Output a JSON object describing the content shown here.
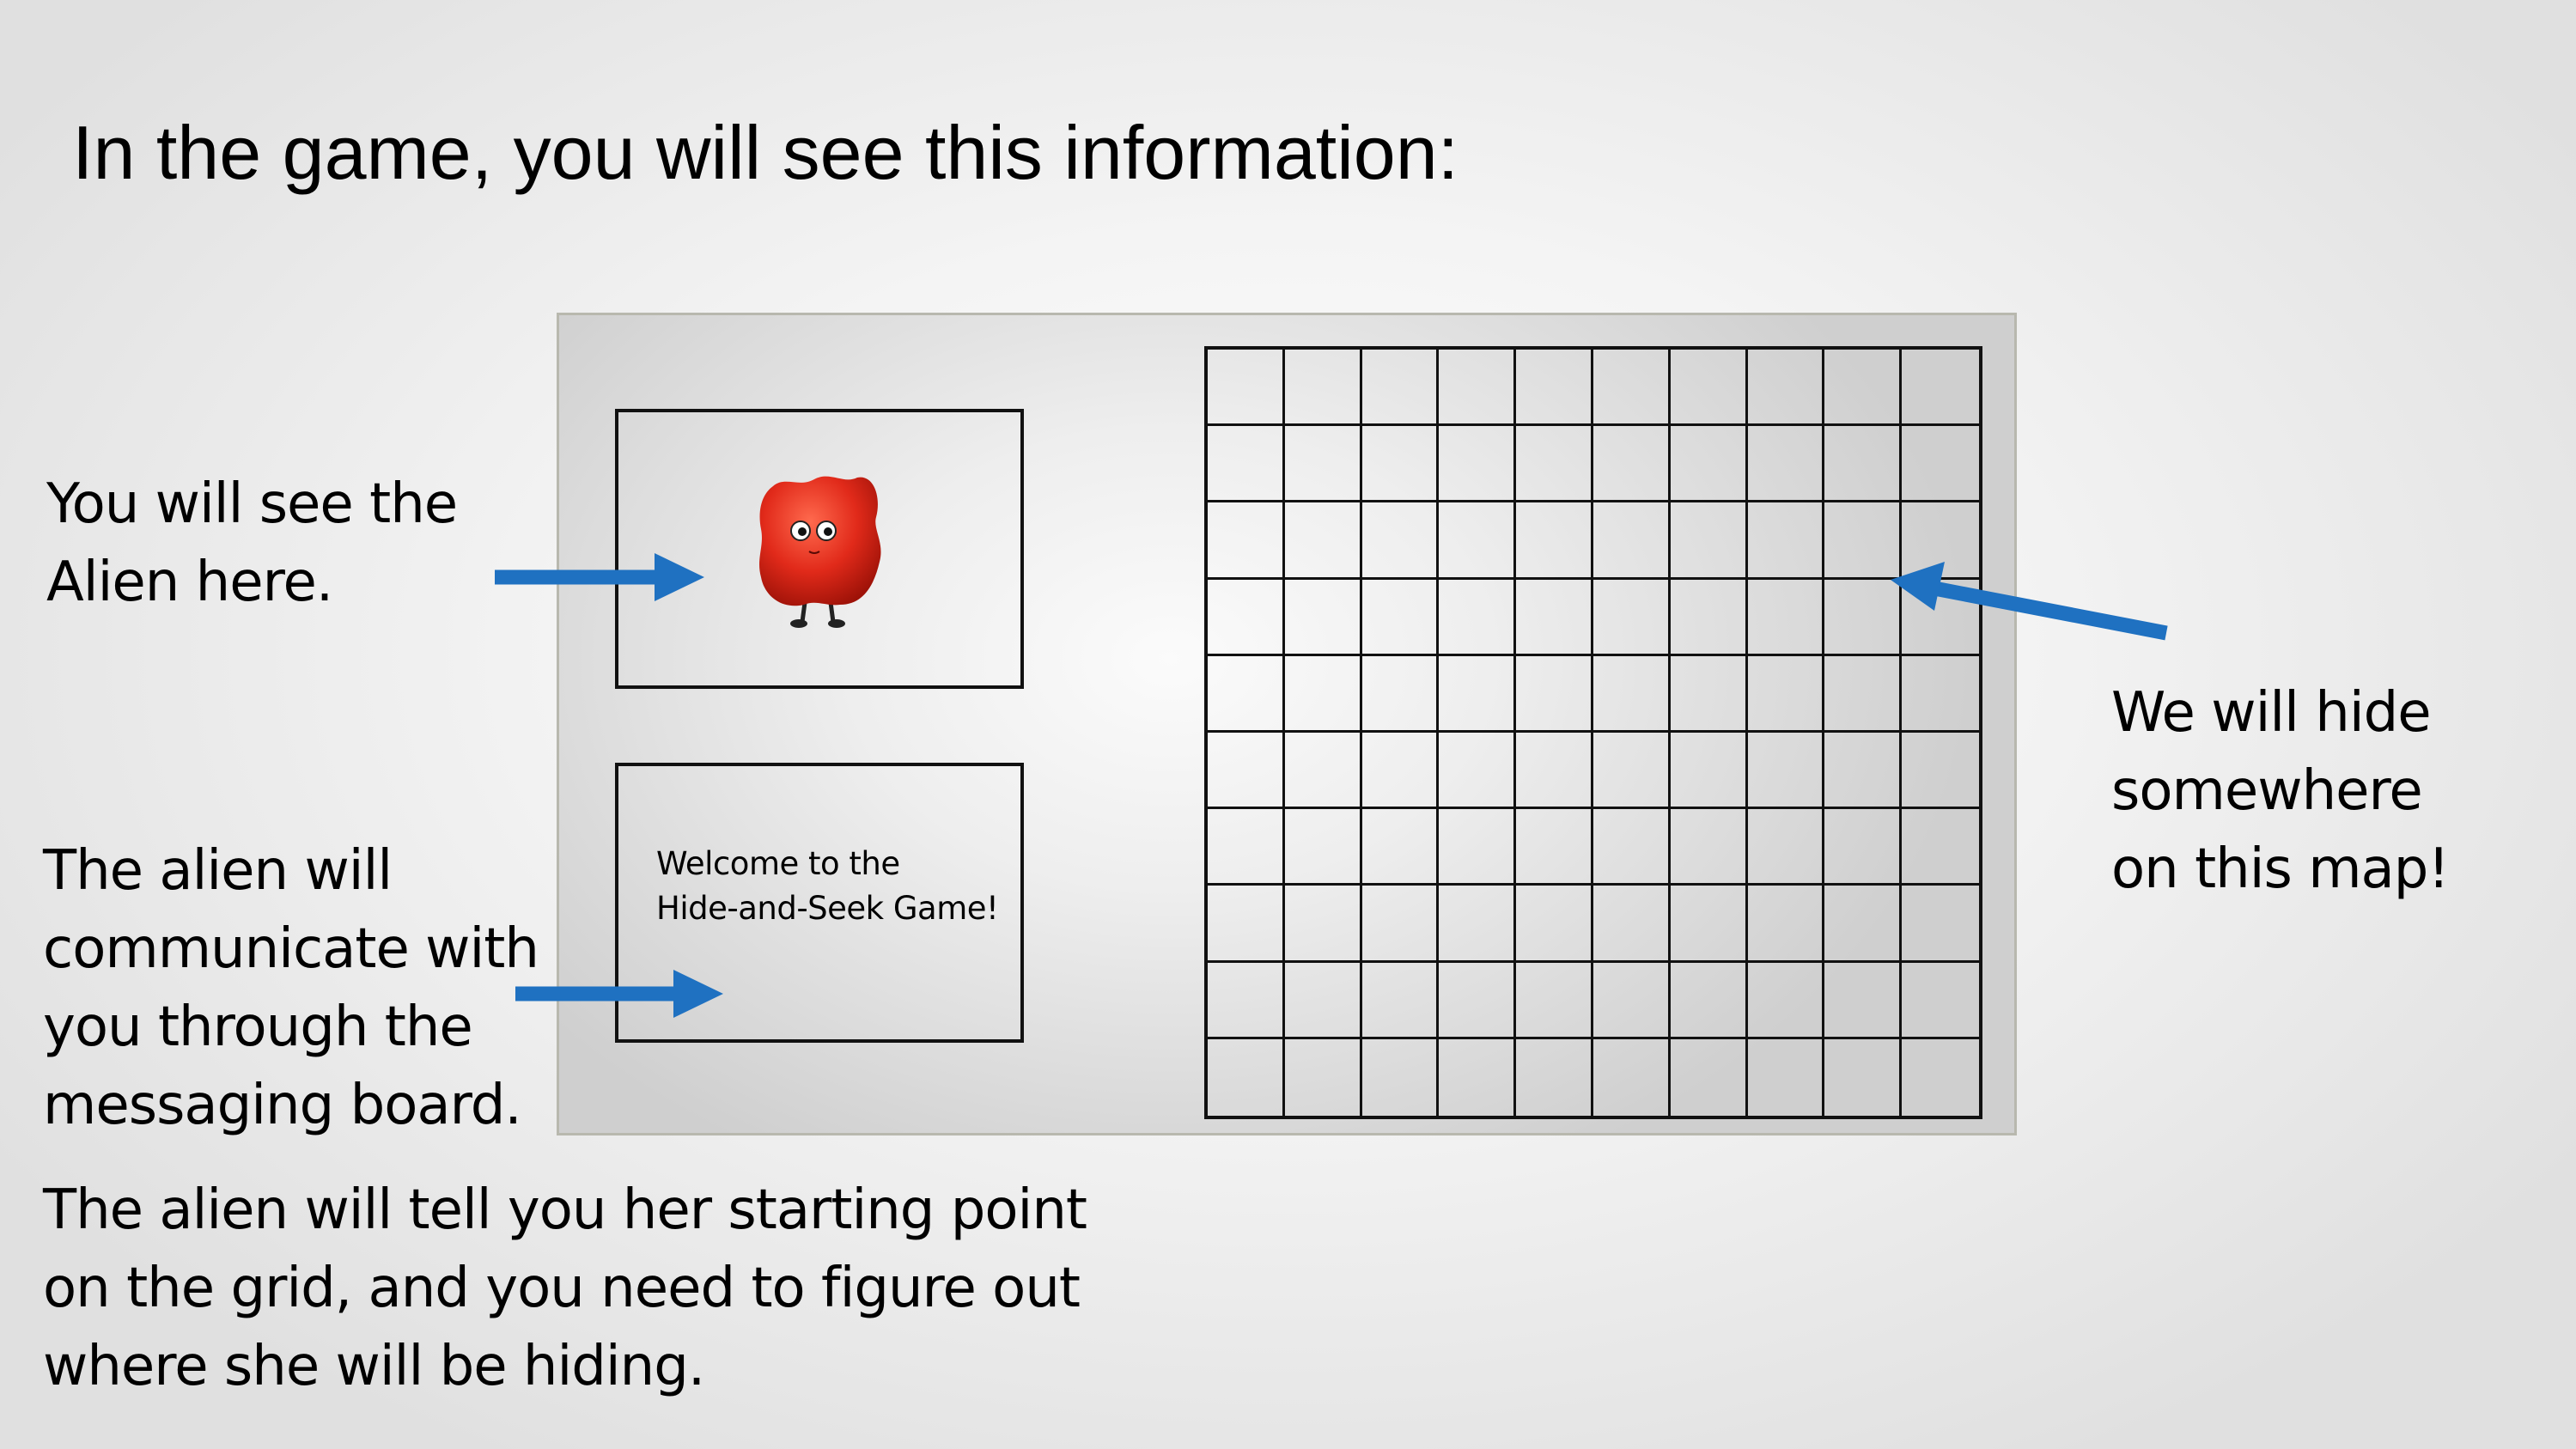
{
  "slide": {
    "title": "In the game, you will see this information:"
  },
  "callouts": {
    "alien": {
      "lines": [
        "You will see the",
        "Alien here."
      ]
    },
    "messaging": {
      "lines": [
        "The alien will",
        "communicate with",
        "you through the",
        "messaging board."
      ]
    },
    "map": {
      "lines": [
        "We will hide",
        "somewhere",
        "on this map!"
      ]
    },
    "instructions": {
      "lines": [
        "The alien will tell you her starting point",
        "on the grid, and you need to figure out",
        "where she will be hiding."
      ]
    }
  },
  "game": {
    "message_board": {
      "lines": [
        "Welcome to the",
        "Hide-and-Seek Game!"
      ]
    },
    "grid": {
      "rows": 10,
      "columns": 10
    },
    "alien_color": "#e12a1a"
  },
  "colors": {
    "arrow": "#1f71c1",
    "grid_line": "#111111",
    "panel_border": "#b8b8ae"
  }
}
